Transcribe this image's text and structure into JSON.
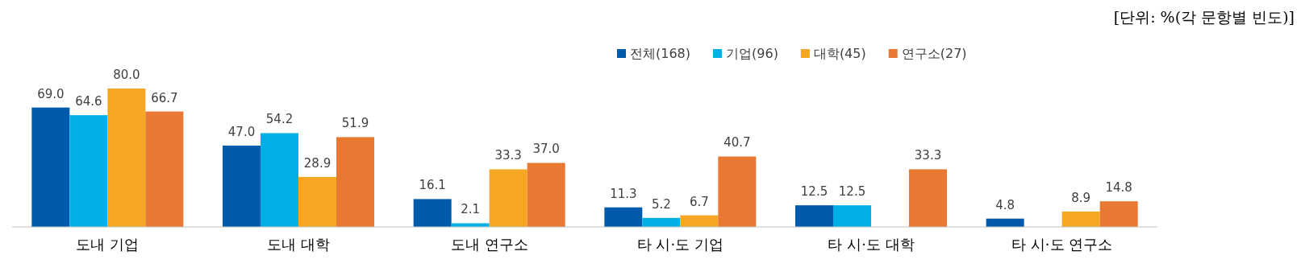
{
  "chart_data": {
    "type": "bar",
    "annotations": [
      "[단위: %(각 문항별 빈도)]"
    ],
    "categories": [
      "도내 기업",
      "도내 대학",
      "도내 연구소",
      "타 시·도 기업",
      "타 시·도 대학",
      "타 시·도 연구소"
    ],
    "series": [
      {
        "name": "전체(168)",
        "color": "#005bac",
        "values": [
          69.0,
          47.0,
          16.1,
          11.3,
          12.5,
          4.8
        ],
        "value_labels": [
          "69.0",
          "47.0",
          "16.1",
          "11.3",
          "12.5",
          "4.8"
        ]
      },
      {
        "name": "기업(96)",
        "color": "#00b0e6",
        "values": [
          64.6,
          54.2,
          2.1,
          5.2,
          12.5,
          null
        ],
        "value_labels": [
          "64.6",
          "54.2",
          "2.1",
          "5.2",
          "12.5",
          null
        ]
      },
      {
        "name": "대학(45)",
        "color": "#f5a623",
        "values": [
          80.0,
          28.9,
          33.3,
          6.7,
          null,
          8.9
        ],
        "value_labels": [
          "80.0",
          "28.9",
          "33.3",
          "6.7",
          null,
          "8.9"
        ]
      },
      {
        "name": "연구소(27)",
        "color": "#e87832",
        "values": [
          66.7,
          51.9,
          37.0,
          40.7,
          33.3,
          14.8
        ],
        "value_labels": [
          "66.7",
          "51.9",
          "37.0",
          "40.7",
          "33.3",
          "14.8"
        ]
      }
    ],
    "legend": "top"
  }
}
